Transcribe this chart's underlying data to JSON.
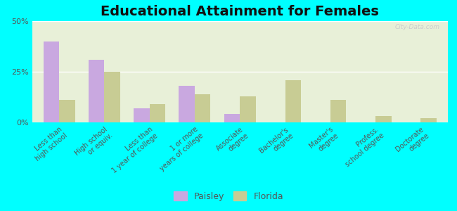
{
  "title": "Educational Attainment for Females",
  "categories": [
    "Less than\nhigh school",
    "High school\nor equiv.",
    "Less than\n1 year of college",
    "1 or more\nyears of college",
    "Associate\ndegree",
    "Bachelor's\ndegree",
    "Master's\ndegree",
    "Profess.\nschool degree",
    "Doctorate\ndegree"
  ],
  "paisley_values": [
    40,
    31,
    7,
    18,
    4,
    0,
    0,
    0,
    0
  ],
  "florida_values": [
    11,
    25,
    9,
    14,
    13,
    21,
    11,
    3,
    2
  ],
  "paisley_color": "#c9a8e0",
  "florida_color": "#c8cc94",
  "bg_color": "#e8f0d8",
  "outer_bg": "#00ffff",
  "ylim": [
    0,
    50
  ],
  "yticks": [
    0,
    25,
    50
  ],
  "ytick_labels": [
    "0%",
    "25%",
    "50%"
  ],
  "bar_width": 0.35,
  "title_fontsize": 14,
  "legend_labels": [
    "Paisley",
    "Florida"
  ]
}
